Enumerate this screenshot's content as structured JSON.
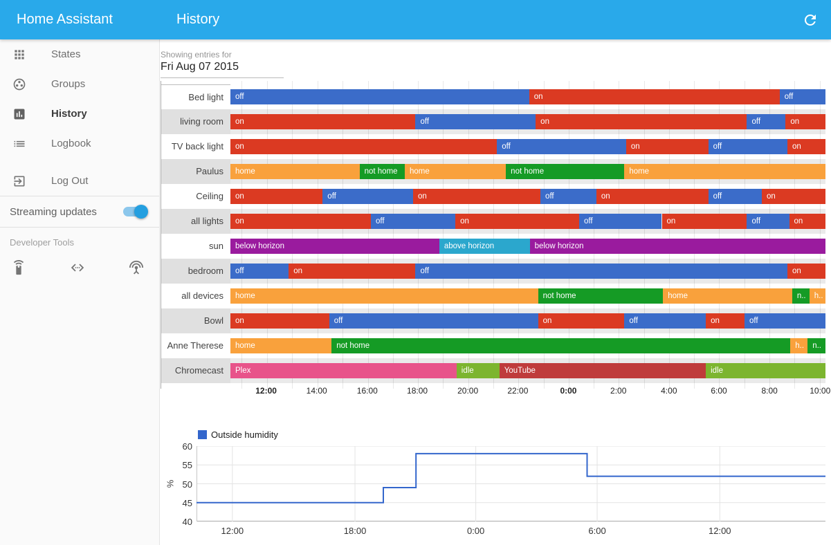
{
  "header": {
    "app_title": "Home Assistant",
    "page_title": "History",
    "refresh_icon": "refresh-icon"
  },
  "sidebar": {
    "items": [
      {
        "label": "States",
        "icon": "apps-grid-icon"
      },
      {
        "label": "Groups",
        "icon": "group-work-icon"
      },
      {
        "label": "History",
        "icon": "bar-chart-icon",
        "active": true
      },
      {
        "label": "Logbook",
        "icon": "list-icon"
      }
    ],
    "logout_label": "Log Out",
    "logout_icon": "exit-icon",
    "streaming_label": "Streaming updates",
    "streaming_enabled": true,
    "developer_tools_label": "Developer Tools",
    "developer_icons": [
      "remote-icon",
      "code-icon",
      "antenna-icon"
    ]
  },
  "main": {
    "showing_entries_label": "Showing entries for",
    "date_value": "Fri Aug 07 2015"
  },
  "chart_data": [
    {
      "type": "timeline",
      "title": "Entity state history timeline",
      "x_ticks": [
        {
          "label": "12:00",
          "pos": 6.0,
          "bold": true
        },
        {
          "label": "14:00",
          "pos": 14.5,
          "bold": false
        },
        {
          "label": "16:00",
          "pos": 23.0,
          "bold": false
        },
        {
          "label": "18:00",
          "pos": 31.4,
          "bold": false
        },
        {
          "label": "20:00",
          "pos": 39.9,
          "bold": false
        },
        {
          "label": "22:00",
          "pos": 48.3,
          "bold": false
        },
        {
          "label": "0:00",
          "pos": 56.8,
          "bold": true
        },
        {
          "label": "2:00",
          "pos": 65.2,
          "bold": false
        },
        {
          "label": "4:00",
          "pos": 73.7,
          "bold": false
        },
        {
          "label": "6:00",
          "pos": 82.1,
          "bold": false
        },
        {
          "label": "8:00",
          "pos": 90.6,
          "bold": false
        },
        {
          "label": "10:00",
          "pos": 99.1,
          "bold": false
        }
      ],
      "gridline_positions": [
        1.8,
        6.0,
        10.2,
        14.5,
        18.7,
        23.0,
        27.2,
        31.4,
        35.6,
        39.9,
        44.1,
        48.3,
        52.6,
        56.8,
        61.0,
        65.2,
        69.5,
        73.7,
        77.9,
        82.1,
        86.4,
        90.6,
        94.8,
        99.1
      ],
      "state_colors": {
        "on": "#db3a22",
        "off": "#3b6cc9",
        "home": "#f9a13c",
        "not home": "#159b25",
        "below horizon": "#9a1b9e",
        "above horizon": "#2ba7cd",
        "Plex": "#e8538a",
        "idle": "#7cb52f",
        "YouTube": "#bf3b3b"
      },
      "rows": [
        {
          "label": "Bed light",
          "segments": [
            {
              "state": "off",
              "label": "off",
              "start_pct": 0,
              "end_pct": 50.2
            },
            {
              "state": "on",
              "label": "on",
              "start_pct": 50.2,
              "end_pct": 92.3
            },
            {
              "state": "off",
              "label": "off",
              "start_pct": 92.3,
              "end_pct": 100
            }
          ]
        },
        {
          "label": "living room",
          "segments": [
            {
              "state": "on",
              "label": "on",
              "start_pct": 0,
              "end_pct": 31.1
            },
            {
              "state": "off",
              "label": "off",
              "start_pct": 31.1,
              "end_pct": 51.3
            },
            {
              "state": "on",
              "label": "on",
              "start_pct": 51.3,
              "end_pct": 86.8
            },
            {
              "state": "off",
              "label": "off",
              "start_pct": 86.8,
              "end_pct": 93.3
            },
            {
              "state": "on",
              "label": "on",
              "start_pct": 93.3,
              "end_pct": 100
            }
          ]
        },
        {
          "label": "TV back light",
          "segments": [
            {
              "state": "on",
              "label": "on",
              "start_pct": 0,
              "end_pct": 44.8
            },
            {
              "state": "off",
              "label": "off",
              "start_pct": 44.8,
              "end_pct": 66.5
            },
            {
              "state": "on",
              "label": "on",
              "start_pct": 66.5,
              "end_pct": 80.3
            },
            {
              "state": "off",
              "label": "off",
              "start_pct": 80.3,
              "end_pct": 93.6
            },
            {
              "state": "on",
              "label": "on",
              "start_pct": 93.6,
              "end_pct": 100
            }
          ]
        },
        {
          "label": "Paulus",
          "segments": [
            {
              "state": "home",
              "label": "home",
              "start_pct": 0,
              "end_pct": 21.7
            },
            {
              "state": "not home",
              "label": "not home",
              "start_pct": 21.7,
              "end_pct": 29.3
            },
            {
              "state": "home",
              "label": "home",
              "start_pct": 29.3,
              "end_pct": 46.3
            },
            {
              "state": "not home",
              "label": "not home",
              "start_pct": 46.3,
              "end_pct": 66.2
            },
            {
              "state": "home",
              "label": "home",
              "start_pct": 66.2,
              "end_pct": 100
            }
          ]
        },
        {
          "label": "Ceiling",
          "segments": [
            {
              "state": "on",
              "label": "on",
              "start_pct": 0,
              "end_pct": 15.5
            },
            {
              "state": "off",
              "label": "off",
              "start_pct": 15.5,
              "end_pct": 30.7
            },
            {
              "state": "on",
              "label": "on",
              "start_pct": 30.7,
              "end_pct": 52.1
            },
            {
              "state": "off",
              "label": "off",
              "start_pct": 52.1,
              "end_pct": 61.5
            },
            {
              "state": "on",
              "label": "on",
              "start_pct": 61.5,
              "end_pct": 80.3
            },
            {
              "state": "off",
              "label": "off",
              "start_pct": 80.3,
              "end_pct": 89.3
            },
            {
              "state": "on",
              "label": "on",
              "start_pct": 89.3,
              "end_pct": 100
            }
          ]
        },
        {
          "label": "all lights",
          "segments": [
            {
              "state": "on",
              "label": "on",
              "start_pct": 0,
              "end_pct": 23.6
            },
            {
              "state": "off",
              "label": "off",
              "start_pct": 23.6,
              "end_pct": 37.8
            },
            {
              "state": "on",
              "label": "on",
              "start_pct": 37.8,
              "end_pct": 58.6
            },
            {
              "state": "off",
              "label": "off",
              "start_pct": 58.6,
              "end_pct": 72.5
            },
            {
              "state": "on",
              "label": "on",
              "start_pct": 72.5,
              "end_pct": 86.8
            },
            {
              "state": "off",
              "label": "off",
              "start_pct": 86.8,
              "end_pct": 93.9
            },
            {
              "state": "on",
              "label": "on",
              "start_pct": 93.9,
              "end_pct": 100
            }
          ]
        },
        {
          "label": "sun",
          "segments": [
            {
              "state": "below horizon",
              "label": "below horizon",
              "start_pct": 0,
              "end_pct": 35.1
            },
            {
              "state": "above horizon",
              "label": "above horizon",
              "start_pct": 35.1,
              "end_pct": 50.3
            },
            {
              "state": "below horizon",
              "label": "below horizon",
              "start_pct": 50.3,
              "end_pct": 100
            }
          ]
        },
        {
          "label": "bedroom",
          "segments": [
            {
              "state": "off",
              "label": "off",
              "start_pct": 0,
              "end_pct": 9.8
            },
            {
              "state": "on",
              "label": "on",
              "start_pct": 9.8,
              "end_pct": 31.1
            },
            {
              "state": "off",
              "label": "off",
              "start_pct": 31.1,
              "end_pct": 93.6
            },
            {
              "state": "on",
              "label": "on",
              "start_pct": 93.6,
              "end_pct": 100
            }
          ]
        },
        {
          "label": "all devices",
          "segments": [
            {
              "state": "home",
              "label": "home",
              "start_pct": 0,
              "end_pct": 51.7
            },
            {
              "state": "not home",
              "label": "not home",
              "start_pct": 51.7,
              "end_pct": 72.7
            },
            {
              "state": "home",
              "label": "home",
              "start_pct": 72.7,
              "end_pct": 94.4
            },
            {
              "state": "not home",
              "label": "n..",
              "start_pct": 94.4,
              "end_pct": 97.3
            },
            {
              "state": "home",
              "label": "h..",
              "start_pct": 97.3,
              "end_pct": 100
            }
          ]
        },
        {
          "label": "Bowl",
          "segments": [
            {
              "state": "on",
              "label": "on",
              "start_pct": 0,
              "end_pct": 16.6
            },
            {
              "state": "off",
              "label": "off",
              "start_pct": 16.6,
              "end_pct": 51.7
            },
            {
              "state": "on",
              "label": "on",
              "start_pct": 51.7,
              "end_pct": 66.2
            },
            {
              "state": "off",
              "label": "off",
              "start_pct": 66.2,
              "end_pct": 79.9
            },
            {
              "state": "on",
              "label": "on",
              "start_pct": 79.9,
              "end_pct": 86.4
            },
            {
              "state": "off",
              "label": "off",
              "start_pct": 86.4,
              "end_pct": 100
            }
          ]
        },
        {
          "label": "Anne Therese",
          "segments": [
            {
              "state": "home",
              "label": "home",
              "start_pct": 0,
              "end_pct": 17.0
            },
            {
              "state": "not home",
              "label": "not home",
              "start_pct": 17.0,
              "end_pct": 94.1
            },
            {
              "state": "home",
              "label": "h..",
              "start_pct": 94.1,
              "end_pct": 97.0
            },
            {
              "state": "not home",
              "label": "n..",
              "start_pct": 97.0,
              "end_pct": 100
            }
          ]
        },
        {
          "label": "Chromecast",
          "segments": [
            {
              "state": "Plex",
              "label": "Plex",
              "start_pct": 0,
              "end_pct": 38.0
            },
            {
              "state": "idle",
              "label": "idle",
              "start_pct": 38.0,
              "end_pct": 45.2
            },
            {
              "state": "YouTube",
              "label": "YouTube",
              "start_pct": 45.2,
              "end_pct": 79.9
            },
            {
              "state": "idle",
              "label": "idle",
              "start_pct": 79.9,
              "end_pct": 100
            }
          ]
        }
      ]
    },
    {
      "type": "line",
      "legend": "Outside humidity",
      "ylabel": "%",
      "ylim": [
        40,
        60
      ],
      "yticks": [
        40,
        45,
        50,
        55,
        60
      ],
      "xticks": [
        {
          "label": "12:00",
          "pos": 5.7
        },
        {
          "label": "18:00",
          "pos": 25.2
        },
        {
          "label": "0:00",
          "pos": 44.4
        },
        {
          "label": "6:00",
          "pos": 63.7
        },
        {
          "label": "12:00",
          "pos": 83.2
        }
      ],
      "line_color": "#3366cc",
      "steps": [
        {
          "x_pct": 0,
          "value": 45
        },
        {
          "x_pct": 29.7,
          "value": 49
        },
        {
          "x_pct": 34.9,
          "value": 58
        },
        {
          "x_pct": 62.1,
          "value": 52
        }
      ]
    }
  ]
}
